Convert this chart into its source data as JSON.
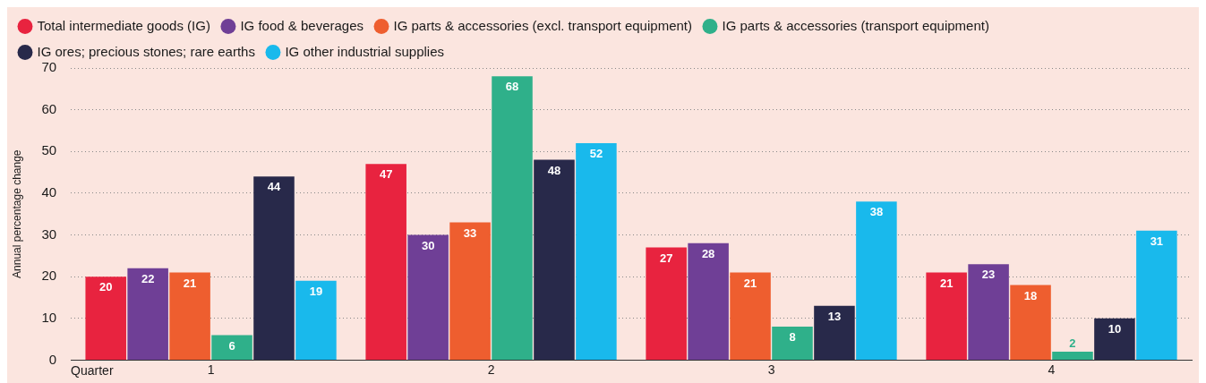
{
  "chart_data": {
    "type": "bar",
    "xlabel": "Quarter",
    "ylabel": "Annual percentage change",
    "categories": [
      "1",
      "2",
      "3",
      "4"
    ],
    "ylim": [
      0,
      70
    ],
    "yticks": [
      0,
      10,
      20,
      30,
      40,
      50,
      60,
      70
    ],
    "grid": "y",
    "legend": "top left",
    "marker": "circle",
    "data_labels": true,
    "series": [
      {
        "name": "Total intermediate goods (IG)",
        "color": "#e8233f",
        "values": [
          20,
          47,
          27,
          21
        ]
      },
      {
        "name": "IG food & beverages",
        "color": "#6f3f96",
        "values": [
          22,
          30,
          28,
          23
        ]
      },
      {
        "name": "IG parts & accessories (excl. transport equipment)",
        "color": "#ee5e2f",
        "values": [
          21,
          33,
          21,
          18
        ]
      },
      {
        "name": "IG parts & accessories (transport equipment)",
        "color": "#2fb08a",
        "values": [
          6,
          68,
          8,
          2
        ]
      },
      {
        "name": "IG ores; precious stones; rare earths",
        "color": "#28294a",
        "values": [
          44,
          48,
          13,
          10
        ]
      },
      {
        "name": "IG other industrial supplies",
        "color": "#19b9ec",
        "values": [
          19,
          52,
          38,
          31
        ]
      }
    ]
  }
}
